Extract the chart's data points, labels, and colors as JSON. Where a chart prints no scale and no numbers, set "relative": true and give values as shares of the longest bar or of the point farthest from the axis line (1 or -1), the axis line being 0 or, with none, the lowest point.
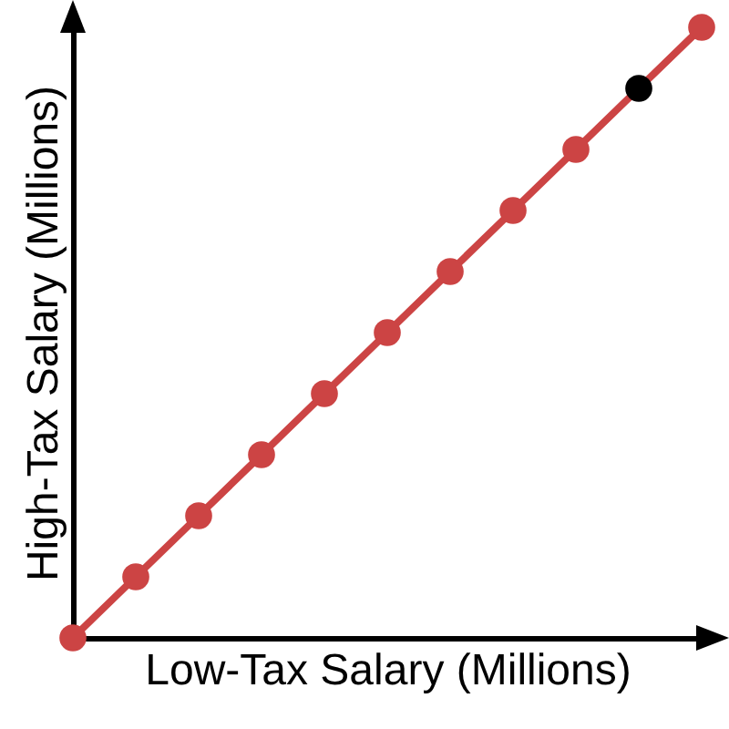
{
  "chart_data": {
    "type": "line",
    "xlabel": "Low-Tax Salary (Millions)",
    "ylabel": "High-Tax Salary (Millions)",
    "relative": true,
    "categories": [
      null,
      null,
      null,
      null,
      null,
      null,
      null,
      null,
      null,
      null,
      null
    ],
    "marker": "circle",
    "series": [
      {
        "color": "#cc4444",
        "values": [
          0,
          0.1,
          0.2,
          0.3,
          0.4,
          0.5,
          0.6,
          0.7,
          0.8,
          0.9,
          1
        ],
        "colors": [
          "#cc4444",
          "#cc4444",
          "#cc4444",
          "#cc4444",
          "#cc4444",
          "#cc4444",
          "#cc4444",
          "#cc4444",
          "#cc4444",
          "#000000",
          "#cc4444"
        ]
      }
    ]
  }
}
